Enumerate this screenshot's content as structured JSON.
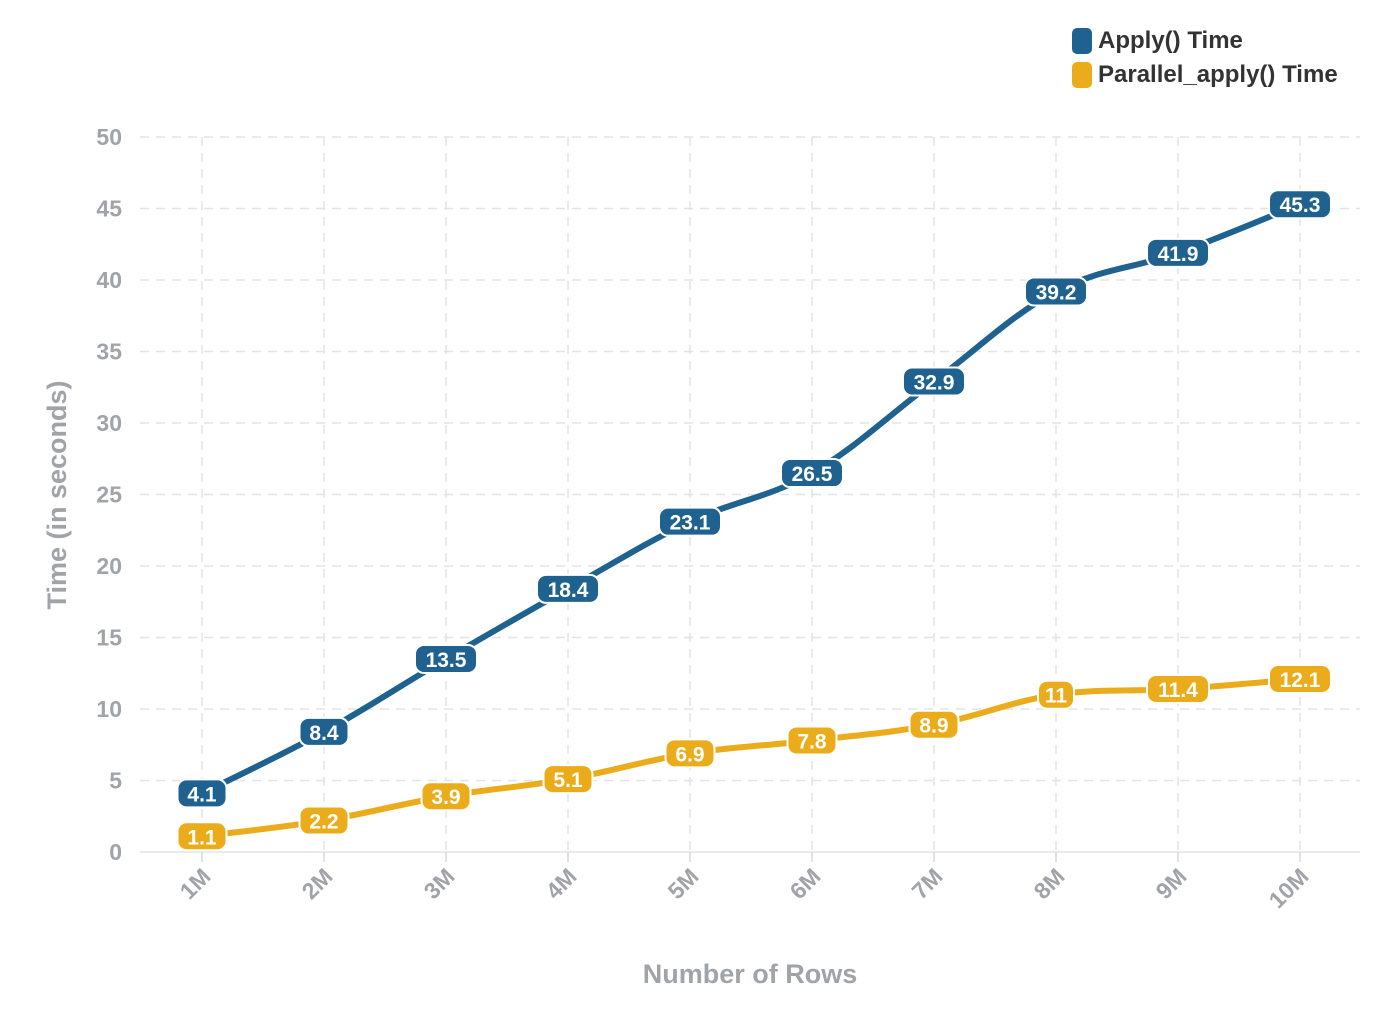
{
  "chart_data": {
    "type": "line",
    "categories": [
      "1M",
      "2M",
      "3M",
      "4M",
      "5M",
      "6M",
      "7M",
      "8M",
      "9M",
      "10M"
    ],
    "series": [
      {
        "name": "Apply() Time",
        "color": "#20628f",
        "values": [
          4.1,
          8.4,
          13.5,
          18.4,
          23.1,
          26.5,
          32.9,
          39.2,
          41.9,
          45.3
        ]
      },
      {
        "name": "Parallel_apply() Time",
        "color": "#ebac1b",
        "values": [
          1.1,
          2.2,
          3.9,
          5.1,
          6.9,
          7.8,
          8.9,
          11,
          11.4,
          12.1
        ]
      }
    ],
    "xlabel": "Number of Rows",
    "ylabel": "Time (in seconds)",
    "ylim": [
      0,
      50
    ],
    "yticks": [
      0,
      5,
      10,
      15,
      20,
      25,
      30,
      35,
      40,
      45,
      50
    ],
    "grid": true,
    "grid_style": "dashed",
    "legend_position": "top-right",
    "axis_text_color": "#a0a4a8"
  }
}
